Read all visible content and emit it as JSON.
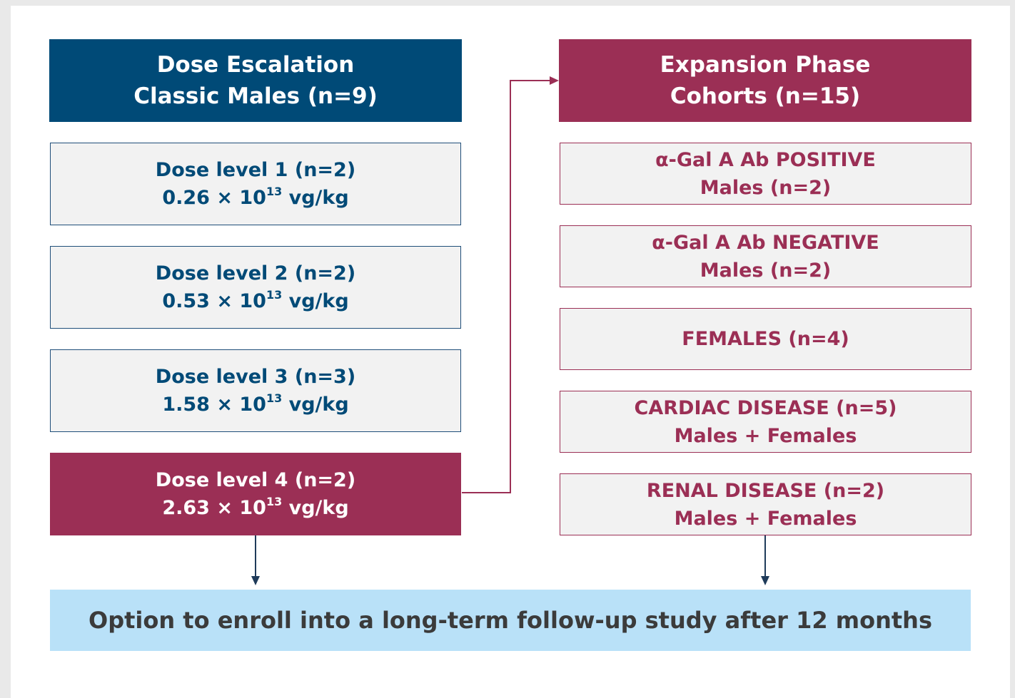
{
  "left": {
    "title_lines": [
      "Dose Escalation",
      "Classic Males (n=9)"
    ],
    "boxes": [
      {
        "label": "Dose level 1 (n=2)",
        "dose": "0.26 × 10",
        "exponent": "13",
        "unit": "vg/kg"
      },
      {
        "label": "Dose level 2 (n=2)",
        "dose": "0.53 × 10",
        "exponent": "13",
        "unit": "vg/kg"
      },
      {
        "label": "Dose level 3 (n=3)",
        "dose": "1.58 × 10",
        "exponent": "13",
        "unit": "vg/kg"
      },
      {
        "label": "Dose level 4 (n=2)",
        "dose": "2.63 × 10",
        "exponent": "13",
        "unit": "vg/kg"
      }
    ]
  },
  "right": {
    "title_lines": [
      "Expansion Phase",
      "Cohorts (n=15)"
    ],
    "boxes": [
      {
        "lines": [
          "α-Gal A Ab POSITIVE",
          "Males (n=2)"
        ]
      },
      {
        "lines": [
          "α-Gal A Ab NEGATIVE",
          "Males (n=2)"
        ]
      },
      {
        "lines": [
          "FEMALES (n=4)"
        ]
      },
      {
        "lines": [
          "CARDIAC DISEASE (n=5)",
          "Males + Females"
        ]
      },
      {
        "lines": [
          "RENAL DISEASE (n=2)",
          "Males + Females"
        ]
      }
    ]
  },
  "footer": "Option to enroll into a long-term follow-up study after 12 months"
}
